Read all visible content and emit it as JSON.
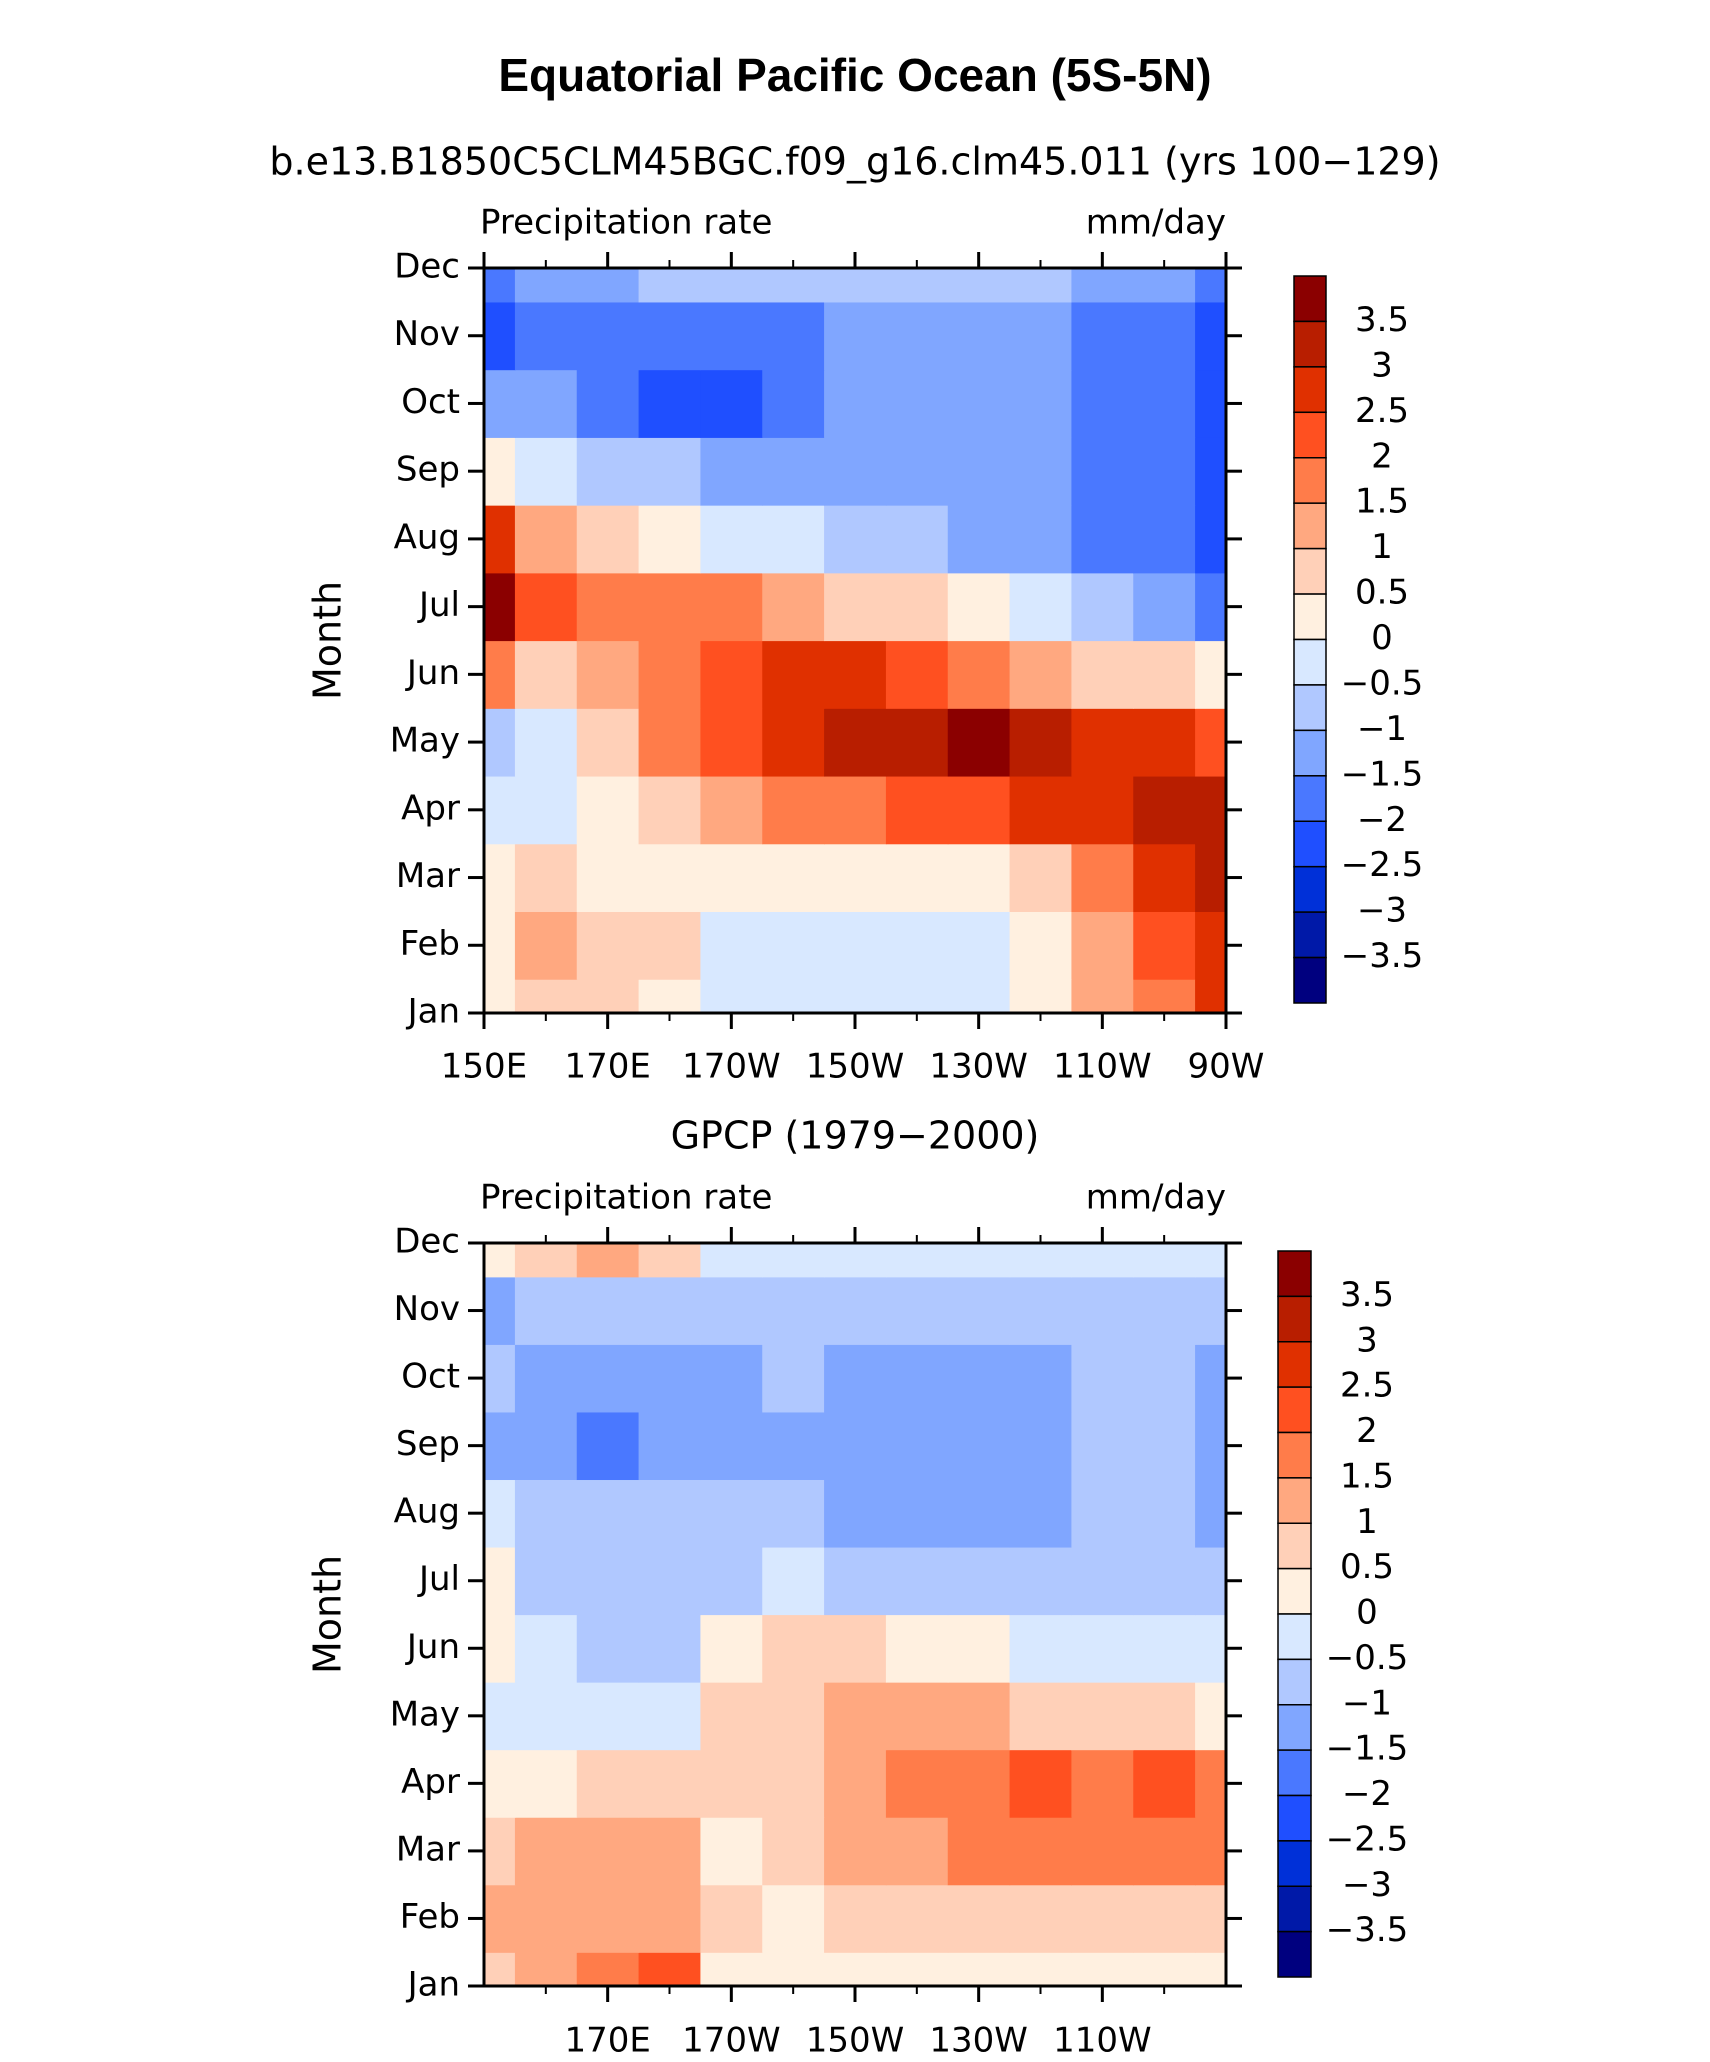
{
  "title": "Equatorial Pacific Ocean (5S-5N)",
  "chart_data": [
    {
      "type": "contour",
      "title": "b.e13.B1850C5CLM45BGC.f09_g16.clm45.011 (yrs 100−129)",
      "subtitle_left": "Precipitation rate",
      "subtitle_right": "mm/day",
      "y_label": "Month",
      "categories": [
        "Jan",
        "Feb",
        "Mar",
        "Apr",
        "May",
        "Jun",
        "Jul",
        "Aug",
        "Sep",
        "Oct",
        "Nov",
        "Dec"
      ],
      "x": [
        150,
        160,
        170,
        180,
        190,
        200,
        210,
        220,
        230,
        240,
        250,
        260,
        270
      ],
      "xlim": [
        150,
        270
      ],
      "xticks": [
        {
          "value": 150,
          "label": "150E"
        },
        {
          "value": 170,
          "label": "170E"
        },
        {
          "value": 190,
          "label": "170W"
        },
        {
          "value": 210,
          "label": "150W"
        },
        {
          "value": 230,
          "label": "130W"
        },
        {
          "value": 250,
          "label": "110W"
        },
        {
          "value": 270,
          "label": "90W"
        }
      ],
      "xminor": [
        160,
        180,
        200,
        220,
        240,
        260
      ],
      "values": [
        [
          0.3,
          0.8,
          0.8,
          0.3,
          -0.2,
          -0.3,
          -0.3,
          -0.3,
          -0.2,
          0.3,
          1.2,
          1.8,
          2.5
        ],
        [
          0.3,
          1.2,
          0.8,
          0.5,
          -0.2,
          -0.3,
          -0.3,
          -0.3,
          -0.2,
          0.3,
          1.2,
          2.0,
          2.8
        ],
        [
          0.2,
          0.5,
          0.3,
          0.4,
          0.4,
          0.4,
          0.4,
          0.4,
          0.4,
          0.8,
          1.6,
          2.5,
          3.0
        ],
        [
          -0.3,
          -0.2,
          0.3,
          0.8,
          1.2,
          1.5,
          1.8,
          2.0,
          2.2,
          2.5,
          2.8,
          3.0,
          3.4
        ],
        [
          -0.8,
          -0.3,
          0.7,
          1.5,
          2.2,
          2.6,
          3.0,
          3.3,
          3.6,
          3.2,
          2.8,
          2.5,
          2.3
        ],
        [
          1.5,
          0.8,
          1.2,
          1.8,
          2.3,
          2.6,
          2.6,
          2.2,
          1.8,
          1.3,
          0.8,
          0.5,
          0.3
        ],
        [
          3.6,
          2.0,
          1.5,
          1.6,
          1.8,
          1.4,
          0.9,
          0.5,
          0.2,
          -0.2,
          -0.6,
          -1.2,
          -1.8
        ],
        [
          2.5,
          1.0,
          0.5,
          0.2,
          -0.2,
          -0.5,
          -0.8,
          -1.0,
          -1.2,
          -1.4,
          -1.6,
          -1.8,
          -2.3
        ],
        [
          0.3,
          -0.4,
          -0.8,
          -1.0,
          -1.2,
          -1.3,
          -1.3,
          -1.3,
          -1.3,
          -1.4,
          -1.6,
          -1.8,
          -2.3
        ],
        [
          -1.2,
          -1.5,
          -1.8,
          -2.2,
          -2.3,
          -1.8,
          -1.4,
          -1.3,
          -1.3,
          -1.3,
          -1.6,
          -1.8,
          -2.4
        ],
        [
          -2.2,
          -1.6,
          -1.7,
          -2.0,
          -1.8,
          -1.6,
          -1.3,
          -1.2,
          -1.2,
          -1.2,
          -1.6,
          -1.8,
          -2.2
        ],
        [
          -2.0,
          -1.4,
          -1.2,
          -0.8,
          -0.9,
          -1.0,
          -1.0,
          -1.0,
          -1.0,
          -1.0,
          -1.2,
          -1.4,
          -2.0
        ]
      ],
      "levels": [
        {
          "value": 3.5,
          "label": "3.5"
        },
        3,
        {
          "value": 2.5,
          "label": "2.5"
        },
        2,
        {
          "value": 1.5,
          "label": "1.5"
        },
        1,
        {
          "value": 0.5,
          "label": "0.5"
        },
        0,
        {
          "value": -0.5,
          "label": "−0.5"
        },
        {
          "value": -1,
          "label": "−1"
        },
        {
          "value": -1.5,
          "label": "−1.5"
        },
        {
          "value": -2,
          "label": "−2"
        },
        {
          "value": -2.5,
          "label": "−2.5"
        },
        {
          "value": -3,
          "label": "−3"
        },
        {
          "value": -3.5,
          "label": "−3.5"
        }
      ],
      "colors": [
        "#8b0000",
        "#b81e00",
        "#e03000",
        "#ff5020",
        "#ff7c4a",
        "#ffa880",
        "#ffd0b8",
        "#fff0e0",
        "#d8e8ff",
        "#b0c8ff",
        "#80a6ff",
        "#4a78ff",
        "#1f4fff",
        "#0030d8",
        "#0019a8",
        "#00007f"
      ]
    },
    {
      "type": "contour",
      "title": "GPCP (1979−2000)",
      "subtitle_left": "Precipitation rate",
      "subtitle_right": "mm/day",
      "y_label": "Month",
      "categories": [
        "Jan",
        "Feb",
        "Mar",
        "Apr",
        "May",
        "Jun",
        "Jul",
        "Aug",
        "Sep",
        "Oct",
        "Nov",
        "Dec"
      ],
      "x": [
        150,
        160,
        170,
        180,
        190,
        200,
        210,
        220,
        230,
        240,
        250,
        260,
        270
      ],
      "xlim": [
        150,
        270
      ],
      "xticks": [
        {
          "value": 170,
          "label": "170E"
        },
        {
          "value": 190,
          "label": "170W"
        },
        {
          "value": 210,
          "label": "150W"
        },
        {
          "value": 230,
          "label": "130W"
        },
        {
          "value": 250,
          "label": "110W"
        }
      ],
      "xminor": [
        160,
        180,
        200,
        220,
        240,
        260
      ],
      "values": [
        [
          0.8,
          1.0,
          1.5,
          2.0,
          0.3,
          0.2,
          0.2,
          0.2,
          0.2,
          0.1,
          0.2,
          0.3,
          0.4
        ],
        [
          1.2,
          1.2,
          1.3,
          1.2,
          0.6,
          0.4,
          0.6,
          0.8,
          0.8,
          0.8,
          0.8,
          0.8,
          0.9
        ],
        [
          0.8,
          1.2,
          1.0,
          1.2,
          0.3,
          0.5,
          1.0,
          1.2,
          1.5,
          1.5,
          1.6,
          1.8,
          1.8
        ],
        [
          0.4,
          0.4,
          0.5,
          0.6,
          0.7,
          0.8,
          1.3,
          1.6,
          1.9,
          2.0,
          1.8,
          2.0,
          1.8
        ],
        [
          -0.2,
          -0.3,
          -0.3,
          -0.2,
          0.5,
          0.8,
          1.0,
          1.1,
          1.0,
          0.9,
          0.8,
          0.5,
          0.3
        ],
        [
          0.4,
          -0.5,
          -0.6,
          -0.6,
          0.2,
          0.6,
          0.5,
          0.4,
          0.2,
          -0.3,
          -0.3,
          -0.2,
          -0.4
        ],
        [
          0.3,
          -0.7,
          -0.8,
          -0.6,
          -0.6,
          -0.5,
          -0.6,
          -0.7,
          -0.7,
          -0.8,
          -0.8,
          -0.8,
          -1.0
        ],
        [
          -0.3,
          -0.8,
          -0.9,
          -0.9,
          -0.9,
          -0.9,
          -1.1,
          -1.2,
          -1.2,
          -1.2,
          -0.9,
          -0.8,
          -1.2
        ],
        [
          -1.3,
          -1.5,
          -1.8,
          -1.3,
          -1.2,
          -1.1,
          -1.3,
          -1.3,
          -1.2,
          -1.2,
          -0.8,
          -0.8,
          -1.3
        ],
        [
          -1.0,
          -1.2,
          -1.5,
          -1.5,
          -1.2,
          -0.9,
          -1.1,
          -1.3,
          -1.3,
          -1.2,
          -0.8,
          -0.9,
          -1.3
        ],
        [
          -1.1,
          -0.9,
          -0.9,
          -0.8,
          -0.8,
          -0.7,
          -0.7,
          -0.7,
          -0.7,
          -0.8,
          -0.8,
          -0.8,
          -0.8
        ],
        [
          0.3,
          0.8,
          1.2,
          0.6,
          -0.2,
          -0.4,
          -0.4,
          -0.4,
          -0.3,
          -0.5,
          -0.5,
          -0.5,
          -0.5
        ]
      ],
      "levels": [
        {
          "value": 3.5,
          "label": "3.5"
        },
        3,
        {
          "value": 2.5,
          "label": "2.5"
        },
        2,
        {
          "value": 1.5,
          "label": "1.5"
        },
        1,
        {
          "value": 0.5,
          "label": "0.5"
        },
        0,
        {
          "value": -0.5,
          "label": "−0.5"
        },
        {
          "value": -1,
          "label": "−1"
        },
        {
          "value": -1.5,
          "label": "−1.5"
        },
        {
          "value": -2,
          "label": "−2"
        },
        {
          "value": -2.5,
          "label": "−2.5"
        },
        {
          "value": -3,
          "label": "−3"
        },
        {
          "value": -3.5,
          "label": "−3.5"
        }
      ],
      "colors": [
        "#8b0000",
        "#b81e00",
        "#e03000",
        "#ff5020",
        "#ff7c4a",
        "#ffa880",
        "#ffd0b8",
        "#fff0e0",
        "#d8e8ff",
        "#b0c8ff",
        "#80a6ff",
        "#4a78ff",
        "#1f4fff",
        "#0030d8",
        "#0019a8",
        "#00007f"
      ]
    }
  ]
}
